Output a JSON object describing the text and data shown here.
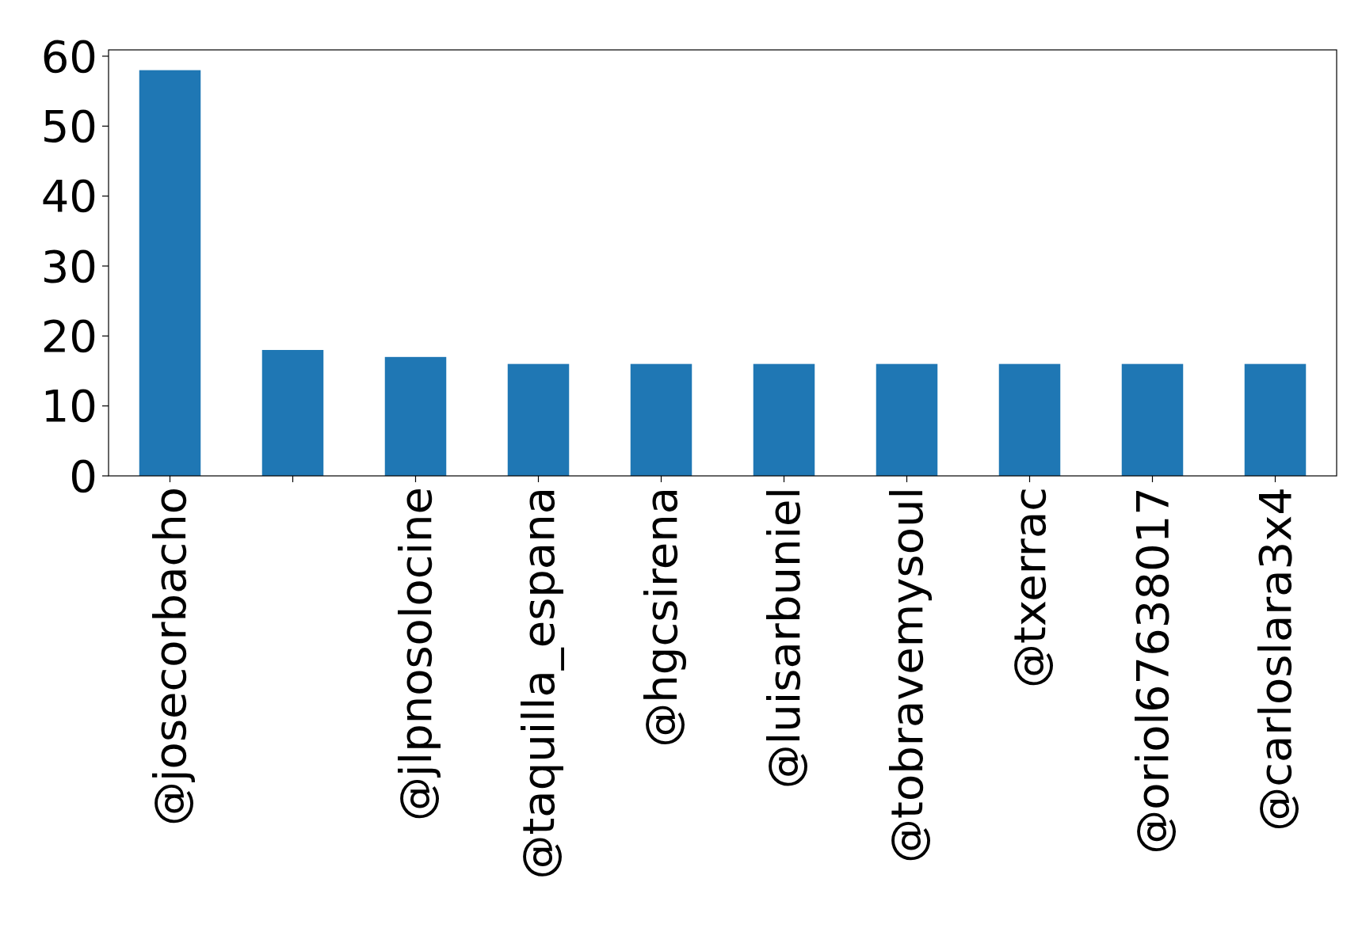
{
  "chart_data": {
    "type": "bar",
    "categories": [
      "@josecorbacho",
      null,
      "@jlpnosolocine",
      "@taquilla_espana",
      "@hgcsirena",
      "@luisarbuniel",
      "@tobravemysoul",
      "@txerrac",
      "@oriol67638017",
      "@carloslara3x4"
    ],
    "values": [
      58,
      18,
      17,
      16,
      16,
      16,
      16,
      16,
      16,
      16
    ],
    "color": "#1f77b4",
    "ylim": [
      0,
      60.9
    ],
    "yticks": [
      0,
      10,
      20,
      30,
      40,
      50,
      60
    ],
    "grid": false
  }
}
